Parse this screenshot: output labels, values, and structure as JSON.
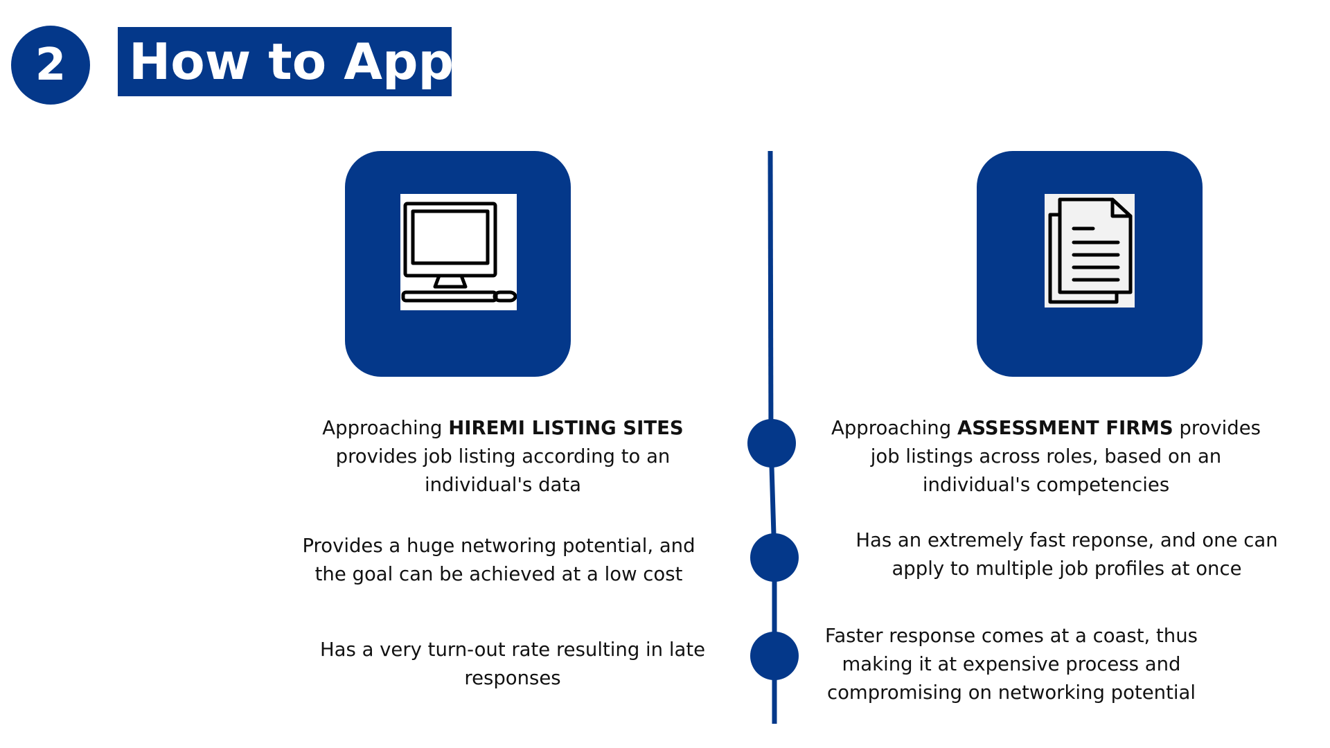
{
  "header": {
    "step_number": "2",
    "title": "How to Apply"
  },
  "colors": {
    "accent": "#04388a",
    "text": "#111111",
    "background": "#ffffff"
  },
  "left_column": {
    "icon": "desktop-computer-icon",
    "items": [
      {
        "line1_prefix": "Approaching ",
        "line1_bold": "HIREMI  LISTING SITES",
        "line2": "provides job listing according to an",
        "line3": "individual's data"
      },
      {
        "line1": "Provides a huge networing potential, and",
        "line2": "the goal can be achieved at a low cost"
      },
      {
        "line1": "Has a very turn-out rate resulting in late",
        "line2": "responses"
      }
    ]
  },
  "right_column": {
    "icon": "documents-icon",
    "items": [
      {
        "line1_prefix": "Approaching ",
        "line1_bold": "ASSESSMENT FIRMS",
        "line1_suffix": " provides",
        "line2": "job listings across roles, based on an",
        "line3": "individual's competencies"
      },
      {
        "line1": "Has an extremely fast reponse, and one can",
        "line2": "apply to multiple job profiles at once"
      },
      {
        "line1": "Faster response comes at a coast, thus",
        "line2": "making it at expensive process and",
        "line3": "compromising on networking potential"
      }
    ]
  }
}
